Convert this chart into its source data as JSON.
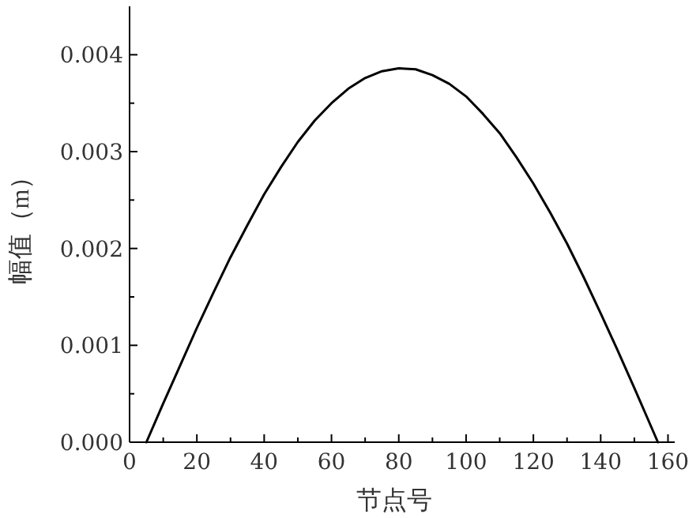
{
  "chart_data": {
    "type": "line",
    "xlabel": "节点号",
    "ylabel": "幅值（m）",
    "xlim": [
      0,
      162
    ],
    "ylim": [
      0,
      0.0045
    ],
    "xticks": [
      0,
      {
        "value": 10,
        "label": null
      },
      20,
      {
        "value": 30,
        "label": null
      },
      40,
      {
        "value": 50,
        "label": null
      },
      60,
      {
        "value": 70,
        "label": null
      },
      80,
      {
        "value": 90,
        "label": null
      },
      100,
      {
        "value": 110,
        "label": null
      },
      120,
      {
        "value": 130,
        "label": null
      },
      140,
      {
        "value": 150,
        "label": null
      },
      160
    ],
    "yticks": [
      {
        "value": 0,
        "label": "0.000"
      },
      {
        "value": 0.0005,
        "label": null
      },
      {
        "value": 0.001,
        "label": "0.001"
      },
      {
        "value": 0.0015,
        "label": null
      },
      {
        "value": 0.002,
        "label": "0.002"
      },
      {
        "value": 0.0025,
        "label": null
      },
      {
        "value": 0.003,
        "label": "0.003"
      },
      {
        "value": 0.0035,
        "label": null
      },
      {
        "value": 0.004,
        "label": "0.004"
      }
    ],
    "series": [
      {
        "color": "#000000",
        "x": [
          5,
          10,
          15,
          20,
          25,
          30,
          35,
          40,
          45,
          50,
          55,
          60,
          65,
          70,
          75,
          80,
          85,
          90,
          95,
          100,
          105,
          110,
          115,
          120,
          125,
          130,
          135,
          140,
          145,
          150,
          153,
          157
        ],
        "values": [
          0,
          0.0004,
          0.00079,
          0.00118,
          0.00155,
          0.00191,
          0.00224,
          0.00256,
          0.00284,
          0.0031,
          0.00332,
          0.0035,
          0.00365,
          0.00376,
          0.00383,
          0.00386,
          0.00385,
          0.00379,
          0.0037,
          0.00357,
          0.00339,
          0.00319,
          0.00294,
          0.00267,
          0.00237,
          0.00205,
          0.0017,
          0.00133,
          0.00095,
          0.00056,
          0.00032,
          0
        ]
      }
    ],
    "grid": false,
    "line_style": "solid",
    "marker": "none"
  }
}
